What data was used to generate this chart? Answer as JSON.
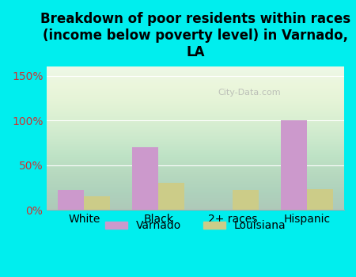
{
  "title": "Breakdown of poor residents within races\n(income below poverty level) in Varnado,\nLA",
  "categories": [
    "White",
    "Black",
    "2+ races",
    "Hispanic"
  ],
  "varnado_values": [
    22,
    70,
    0,
    100
  ],
  "louisiana_values": [
    15,
    30,
    22,
    23
  ],
  "varnado_color": "#cc99cc",
  "louisiana_color": "#cccc88",
  "background_color": "#00eeee",
  "yticks": [
    0,
    50,
    100,
    150
  ],
  "ylim": [
    0,
    160
  ],
  "bar_width": 0.35,
  "title_fontsize": 12,
  "tick_fontsize": 10,
  "legend_labels": [
    "Varnado",
    "Louisiana"
  ]
}
